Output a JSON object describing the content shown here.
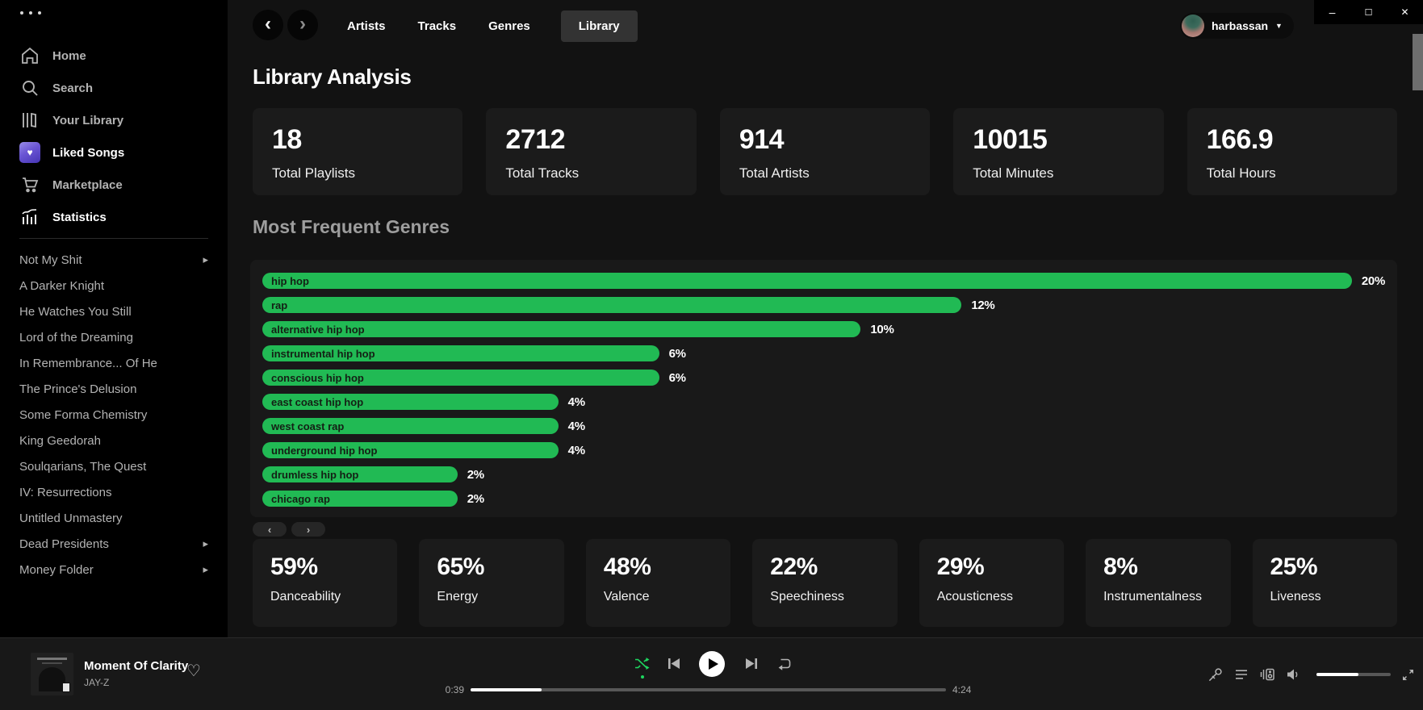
{
  "colors": {
    "accent": "#21ba54",
    "bg": "#121212",
    "sidebar_bg": "#000000",
    "card_bg": "#1b1b1b",
    "panel_bg": "#191919",
    "player_bg": "#181818",
    "tab_active_bg": "#333333"
  },
  "titlebar": {
    "controls": [
      "minimize-icon",
      "maximize-icon",
      "close-icon"
    ]
  },
  "sidebar": {
    "menu_icon": "ellipsis-icon",
    "nav_items": [
      {
        "icon": "home-icon",
        "label": "Home",
        "active": false
      },
      {
        "icon": "search-icon",
        "label": "Search",
        "active": false
      },
      {
        "icon": "library-icon",
        "label": "Your Library",
        "active": false
      },
      {
        "icon": "liked-songs-icon",
        "label": "Liked Songs",
        "active": true
      },
      {
        "icon": "marketplace-icon",
        "label": "Marketplace",
        "active": false
      },
      {
        "icon": "statistics-icon",
        "label": "Statistics",
        "active": true
      }
    ],
    "playlists": [
      {
        "label": "Not My Shit",
        "has_arrow": true
      },
      {
        "label": "A Darker Knight",
        "has_arrow": false
      },
      {
        "label": "He Watches You Still",
        "has_arrow": false
      },
      {
        "label": "Lord of the Dreaming",
        "has_arrow": false
      },
      {
        "label": "In Remembrance... Of He",
        "has_arrow": false
      },
      {
        "label": "The Prince's Delusion",
        "has_arrow": false
      },
      {
        "label": "Some Forma Chemistry",
        "has_arrow": false
      },
      {
        "label": "King Geedorah",
        "has_arrow": false
      },
      {
        "label": "Soulqarians, The Quest",
        "has_arrow": false
      },
      {
        "label": "IV: Resurrections",
        "has_arrow": false
      },
      {
        "label": "Untitled Unmastery",
        "has_arrow": false
      },
      {
        "label": "Dead Presidents",
        "has_arrow": true
      },
      {
        "label": "Money Folder",
        "has_arrow": true
      }
    ]
  },
  "topnav": {
    "back_icon": "chevron-left-icon",
    "forward_icon": "chevron-right-icon",
    "tabs": [
      {
        "label": "Artists",
        "active": false
      },
      {
        "label": "Tracks",
        "active": false
      },
      {
        "label": "Genres",
        "active": false
      },
      {
        "label": "Library",
        "active": true
      }
    ],
    "user": {
      "name": "harbassan",
      "caret_icon": "caret-down-icon"
    }
  },
  "main": {
    "title": "Library Analysis",
    "stats": [
      {
        "value": "18",
        "label": "Total Playlists"
      },
      {
        "value": "2712",
        "label": "Total Tracks"
      },
      {
        "value": "914",
        "label": "Total Artists"
      },
      {
        "value": "10015",
        "label": "Total Minutes"
      },
      {
        "value": "166.9",
        "label": "Total Hours"
      }
    ],
    "genres_heading": "Most Frequent Genres",
    "pager": {
      "prev": "‹",
      "next": "›"
    },
    "features": [
      {
        "value": "59%",
        "label": "Danceability"
      },
      {
        "value": "65%",
        "label": "Energy"
      },
      {
        "value": "48%",
        "label": "Valence"
      },
      {
        "value": "22%",
        "label": "Speechiness"
      },
      {
        "value": "29%",
        "label": "Acousticness"
      },
      {
        "value": "8%",
        "label": "Instrumentalness"
      },
      {
        "value": "25%",
        "label": "Liveness"
      }
    ]
  },
  "chart_data": {
    "type": "bar",
    "orientation": "horizontal",
    "title": "Most Frequent Genres",
    "categories": [
      "hip hop",
      "rap",
      "alternative hip hop",
      "instrumental hip hop",
      "conscious hip hop",
      "east coast hip hop",
      "west coast rap",
      "underground hip hop",
      "drumless hip hop",
      "chicago rap"
    ],
    "values": [
      20,
      12,
      10,
      6,
      6,
      4,
      4,
      4,
      2,
      2
    ],
    "value_labels": [
      "20%",
      "12%",
      "10%",
      "6%",
      "6%",
      "4%",
      "4%",
      "4%",
      "2%",
      "2%"
    ],
    "unit": "%",
    "bar_color": "#21ba54",
    "xlim": [
      0,
      20
    ],
    "grid": false,
    "legend": "none"
  },
  "player": {
    "track": {
      "title": "Moment Of Clarity",
      "artist": "JAY-Z"
    },
    "heart_icon": "heart-outline-icon",
    "controls": [
      "shuffle-icon",
      "previous-icon",
      "play-icon",
      "next-icon",
      "repeat-icon"
    ],
    "shuffle_active": true,
    "elapsed": "0:39",
    "total": "4:24",
    "progress_pct": 15,
    "right_icons": [
      "mic-icon",
      "queue-icon",
      "device-icon",
      "volume-icon",
      "fullscreen-icon"
    ],
    "volume_pct": 57
  }
}
